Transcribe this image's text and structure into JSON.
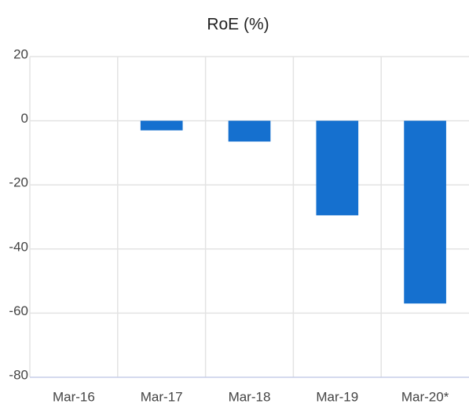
{
  "chart_data": {
    "type": "bar",
    "title": "RoE (%)",
    "categories": [
      "Mar-16",
      "Mar-17",
      "Mar-18",
      "Mar-19",
      "Mar-20*"
    ],
    "values": [
      0,
      -3,
      -6.5,
      -29.5,
      -57
    ],
    "color": "#1570cf",
    "ylim": [
      -80,
      20
    ],
    "yticks": [
      -80,
      -60,
      -40,
      -20,
      0,
      20
    ],
    "grid": true
  }
}
